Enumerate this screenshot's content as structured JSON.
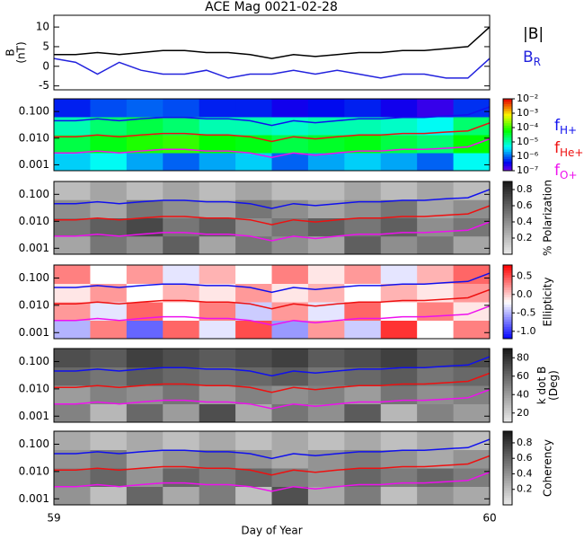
{
  "chart_data": [
    {
      "type": "line",
      "title": "ACE Mag 0021-02-28",
      "ylabel": [
        "B",
        "(nT)"
      ],
      "x": [
        59.0,
        59.05,
        59.1,
        59.15,
        59.2,
        59.25,
        59.3,
        59.35,
        59.4,
        59.45,
        59.5,
        59.55,
        59.6,
        59.65,
        59.7,
        59.75,
        59.8,
        59.85,
        59.9,
        59.95,
        60.0
      ],
      "xlim": [
        59,
        60
      ],
      "ylim": [
        -6,
        13
      ],
      "yticks": [
        -5,
        0,
        5,
        10
      ],
      "series": [
        {
          "name": "|B|",
          "color": "#000000",
          "values": [
            3,
            3,
            3.5,
            3,
            3.5,
            4,
            4,
            3.5,
            3.5,
            3,
            2,
            3,
            2.5,
            3,
            3.5,
            3.5,
            4,
            4,
            4.5,
            5,
            10
          ]
        },
        {
          "name": "B",
          "name_sub": "R",
          "color": "#2222dd",
          "values": [
            2,
            1,
            -2,
            1,
            -1,
            -2,
            -2,
            -1,
            -3,
            -2,
            -2,
            -1,
            -2,
            -1,
            -2,
            -3,
            -2,
            -2,
            -3,
            -3,
            2
          ]
        }
      ]
    },
    {
      "type": "spectrogram",
      "colormap": "rainbow",
      "log_z": true,
      "zlim": [
        1e-07,
        0.01
      ],
      "zticks": [
        {
          "value": 0.01,
          "label": "10⁻²"
        },
        {
          "value": 0.001,
          "label": "10⁻³"
        },
        {
          "value": 0.0001,
          "label": "10⁻⁴"
        },
        {
          "value": 1e-05,
          "label": "10⁻⁵"
        },
        {
          "value": 1e-06,
          "label": "10⁻⁶"
        },
        {
          "value": 1e-07,
          "label": "10⁻⁷"
        }
      ],
      "xlim": [
        59,
        60
      ],
      "ylim": [
        0.0006,
        0.3
      ],
      "log_y": true,
      "yticks": [
        {
          "value": 0.001,
          "label": "0.001"
        },
        {
          "value": 0.01,
          "label": "0.010"
        },
        {
          "value": 0.1,
          "label": "0.100"
        }
      ],
      "x": [
        59.0,
        59.05,
        59.1,
        59.15,
        59.2,
        59.25,
        59.3,
        59.35,
        59.4,
        59.45,
        59.5,
        59.55,
        59.6,
        59.65,
        59.7,
        59.75,
        59.8,
        59.85,
        59.9,
        59.95,
        60.0
      ],
      "series": [
        {
          "name": "f",
          "name_sub": "H+",
          "color": "#1010ee",
          "values": [
            0.045,
            0.045,
            0.053,
            0.045,
            0.053,
            0.06,
            0.06,
            0.053,
            0.053,
            0.045,
            0.03,
            0.045,
            0.038,
            0.045,
            0.053,
            0.053,
            0.06,
            0.06,
            0.068,
            0.075,
            0.15
          ]
        },
        {
          "name": "f",
          "name_sub": "He+",
          "color": "#ee1010",
          "values": [
            0.0113,
            0.0113,
            0.0131,
            0.0113,
            0.0131,
            0.015,
            0.015,
            0.0131,
            0.0131,
            0.0113,
            0.0075,
            0.0113,
            0.0094,
            0.0113,
            0.0131,
            0.0131,
            0.015,
            0.015,
            0.0169,
            0.0188,
            0.0375
          ]
        },
        {
          "name": "f",
          "name_sub": "O+",
          "color": "#ee10ee",
          "values": [
            0.0028,
            0.0028,
            0.0033,
            0.0028,
            0.0033,
            0.0038,
            0.0038,
            0.0033,
            0.0033,
            0.0028,
            0.0019,
            0.0028,
            0.0023,
            0.0028,
            0.0033,
            0.0033,
            0.0038,
            0.0038,
            0.0042,
            0.0047,
            0.0094
          ]
        }
      ],
      "z": [
        [
          3e-06,
          5e-06,
          2e-06,
          1e-06,
          2e-06,
          3e-06,
          1e-06,
          2e-06,
          3e-06,
          2e-06,
          1e-06,
          5e-06
        ],
        [
          3e-05,
          5e-05,
          8e-05,
          0.0001,
          6e-05,
          5e-05,
          3e-05,
          4e-05,
          5e-05,
          3e-05,
          2e-05,
          6e-05
        ],
        [
          1e-05,
          2e-05,
          3e-05,
          2e-05,
          1e-05,
          1e-05,
          8e-06,
          1e-05,
          1e-05,
          8e-06,
          5e-06,
          2e-05
        ],
        [
          5e-07,
          8e-07,
          1e-06,
          8e-07,
          5e-07,
          5e-07,
          3e-07,
          4e-07,
          5e-07,
          3e-07,
          2e-07,
          6e-07
        ]
      ]
    },
    {
      "type": "spectrogram",
      "colormap": "gray",
      "zlabel": [
        "% Polarization"
      ],
      "zlim": [
        0,
        0.9
      ],
      "zticks": [
        0.2,
        0.4,
        0.6,
        0.8
      ],
      "xlim": [
        59,
        60
      ],
      "ylim": [
        0.0006,
        0.3
      ],
      "log_y": true,
      "yticks": [
        {
          "value": 0.001,
          "label": "0.001"
        },
        {
          "value": 0.01,
          "label": "0.010"
        },
        {
          "value": 0.1,
          "label": "0.100"
        }
      ],
      "z": [
        [
          0.3,
          0.5,
          0.4,
          0.6,
          0.3,
          0.5,
          0.4,
          0.3,
          0.6,
          0.4,
          0.5,
          0.3
        ],
        [
          0.5,
          0.6,
          0.7,
          0.5,
          0.6,
          0.4,
          0.5,
          0.6,
          0.5,
          0.6,
          0.4,
          0.5
        ],
        [
          0.4,
          0.3,
          0.5,
          0.4,
          0.3,
          0.5,
          0.4,
          0.3,
          0.4,
          0.5,
          0.3,
          0.4
        ],
        [
          0.2,
          0.3,
          0.2,
          0.3,
          0.2,
          0.3,
          0.2,
          0.2,
          0.3,
          0.2,
          0.3,
          0.2
        ]
      ]
    },
    {
      "type": "spectrogram",
      "colormap": "bwr",
      "zlabel": [
        "Ellipticity"
      ],
      "zlim": [
        -1.2,
        0.8
      ],
      "zticks": [
        {
          "value": -1,
          "label": "-1.0"
        },
        -0.5,
        {
          "value": 0,
          "label": "0.0"
        },
        0.5
      ],
      "xlim": [
        59,
        60
      ],
      "ylim": [
        0.0006,
        0.3
      ],
      "log_y": true,
      "yticks": [
        {
          "value": 0.001,
          "label": "0.001"
        },
        {
          "value": 0.01,
          "label": "0.010"
        },
        {
          "value": 0.1,
          "label": "0.100"
        }
      ],
      "z": [
        [
          -0.5,
          0.3,
          -0.8,
          0.4,
          -0.3,
          0.5,
          -0.6,
          0.2,
          -0.4,
          0.6,
          -0.2,
          0.3
        ],
        [
          0.2,
          -0.3,
          0.4,
          -0.2,
          0.3,
          -0.4,
          0.2,
          -0.3,
          0.4,
          -0.2,
          0.3,
          -0.1
        ],
        [
          -0.1,
          0.2,
          -0.2,
          0.1,
          -0.1,
          0.2,
          -0.1,
          0.1,
          -0.2,
          0.1,
          -0.1,
          0.2
        ],
        [
          0.3,
          -0.2,
          0.2,
          -0.3,
          0.1,
          -0.2,
          0.3,
          -0.1,
          0.2,
          -0.3,
          0.1,
          0.4
        ]
      ]
    },
    {
      "type": "spectrogram",
      "colormap": "gray",
      "zlabel": [
        "k dot B",
        "(Deg)"
      ],
      "zlim": [
        10,
        90
      ],
      "zticks": [
        20,
        40,
        60,
        80
      ],
      "xlim": [
        59,
        60
      ],
      "ylim": [
        0.0006,
        0.3
      ],
      "log_y": true,
      "yticks": [
        {
          "value": 0.001,
          "label": "0.001"
        },
        {
          "value": 0.01,
          "label": "0.010"
        },
        {
          "value": 0.1,
          "label": "0.100"
        }
      ],
      "z": [
        [
          50,
          30,
          60,
          40,
          70,
          35,
          55,
          45,
          65,
          30,
          50,
          40
        ],
        [
          40,
          50,
          45,
          55,
          40,
          50,
          45,
          50,
          40,
          55,
          45,
          50
        ],
        [
          60,
          55,
          65,
          60,
          55,
          60,
          65,
          55,
          60,
          65,
          55,
          60
        ],
        [
          70,
          65,
          75,
          70,
          65,
          70,
          75,
          65,
          70,
          75,
          65,
          70
        ]
      ]
    },
    {
      "type": "spectrogram",
      "colormap": "gray",
      "zlabel": [
        "Coherency"
      ],
      "zlim": [
        0,
        0.95
      ],
      "zticks": [
        0.2,
        0.4,
        0.6,
        0.8
      ],
      "xlim": [
        59,
        60
      ],
      "ylim": [
        0.0006,
        0.3
      ],
      "log_y": true,
      "xlabel": "Day of Year",
      "xticks": [
        59,
        60
      ],
      "yticks": [
        {
          "value": 0.001,
          "label": "0.001"
        },
        {
          "value": 0.01,
          "label": "0.010"
        },
        {
          "value": 0.1,
          "label": "0.100"
        }
      ],
      "z": [
        [
          0.4,
          0.2,
          0.6,
          0.3,
          0.5,
          0.2,
          0.7,
          0.3,
          0.5,
          0.2,
          0.4,
          0.3
        ],
        [
          0.5,
          0.6,
          0.4,
          0.6,
          0.5,
          0.6,
          0.5,
          0.4,
          0.6,
          0.5,
          0.6,
          0.5
        ],
        [
          0.4,
          0.5,
          0.3,
          0.4,
          0.5,
          0.4,
          0.3,
          0.4,
          0.5,
          0.4,
          0.3,
          0.4
        ],
        [
          0.3,
          0.2,
          0.3,
          0.2,
          0.3,
          0.2,
          0.3,
          0.2,
          0.3,
          0.2,
          0.3,
          0.2
        ]
      ]
    }
  ]
}
